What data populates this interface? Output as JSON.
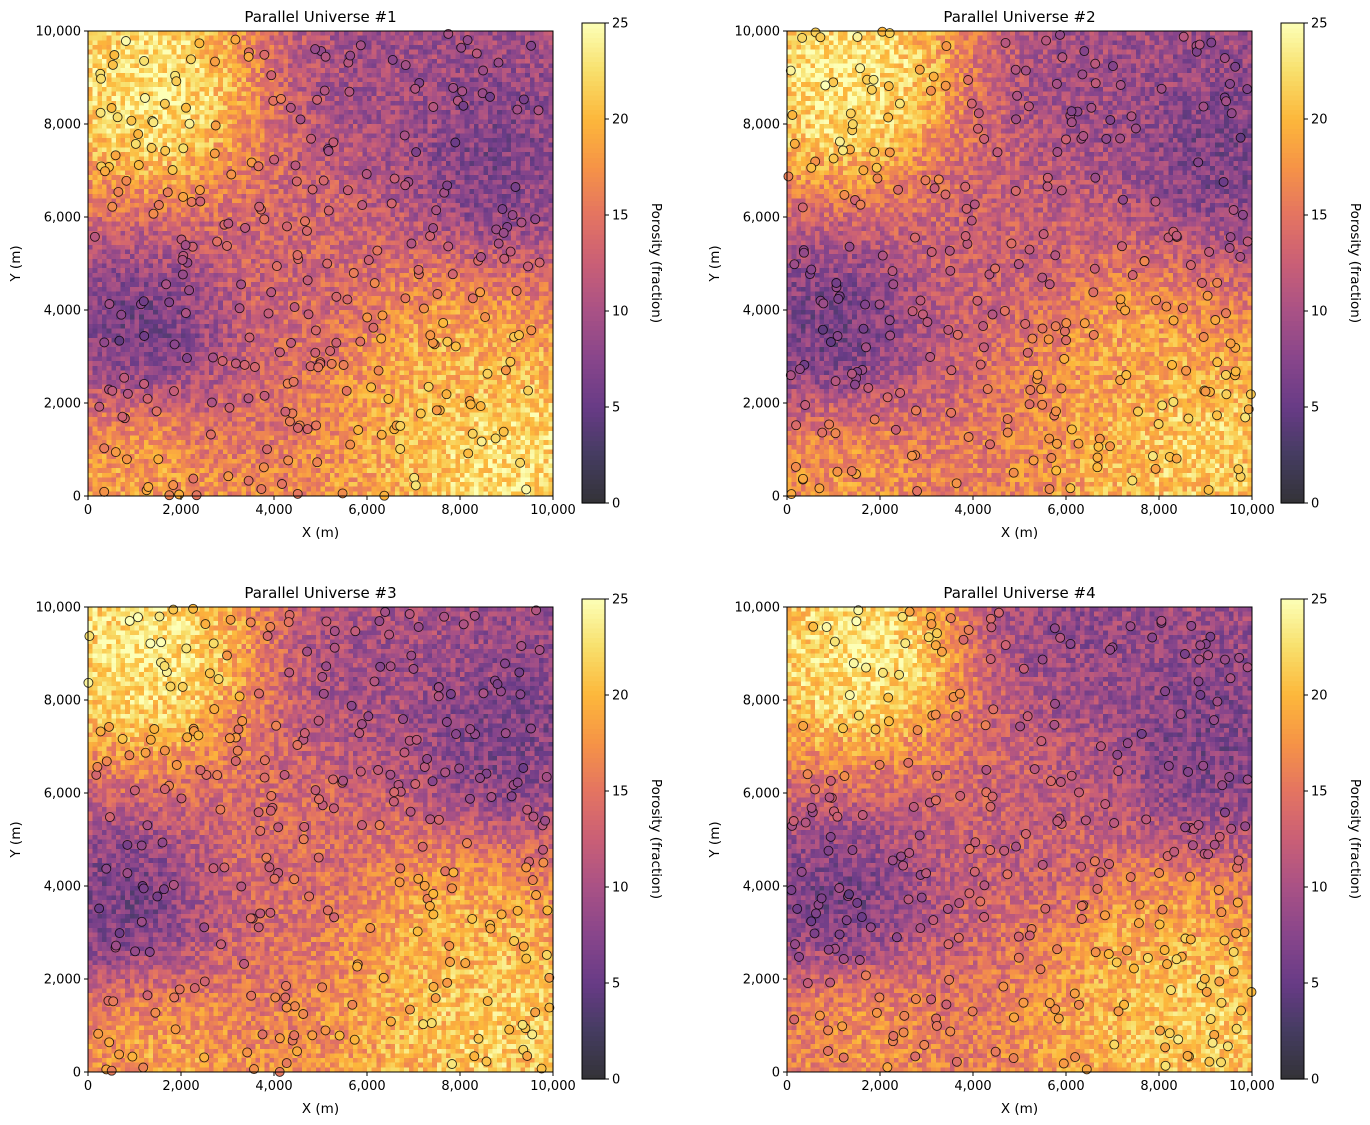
{
  "colors": {
    "colormap": "inferno",
    "colormap_alpha": 0.8,
    "sample_edgecolor": "#000000"
  },
  "chart_data": [
    {
      "type": "heatmap",
      "title": "Parallel Universe #1",
      "xlabel": "X (m)",
      "ylabel": "Y (m)",
      "xlim": [
        0,
        10000
      ],
      "ylim": [
        0,
        10000
      ],
      "xticks": [
        "0",
        "2,000",
        "4,000",
        "6,000",
        "8,000",
        "10,000"
      ],
      "yticks": [
        "0",
        "2,000",
        "4,000",
        "6,000",
        "8,000",
        "10,000"
      ],
      "colorbar": {
        "label": "Porosity (fraction)",
        "range": [
          0,
          25
        ],
        "ticks": [
          "0",
          "5",
          "10",
          "15",
          "20",
          "25"
        ]
      },
      "grid_cells": [
        100,
        100
      ],
      "seed": 11,
      "trend_centers": [
        {
          "x": 1600,
          "y": 8600,
          "value": 24
        },
        {
          "x": 8800,
          "y": 1000,
          "value": 23
        },
        {
          "x": 7500,
          "y": 3000,
          "value": 20
        },
        {
          "x": 1200,
          "y": 3500,
          "value": 5
        },
        {
          "x": 8500,
          "y": 7000,
          "value": 6
        },
        {
          "x": 6000,
          "y": 9000,
          "value": 9
        },
        {
          "x": 1000,
          "y": 600,
          "value": 19
        },
        {
          "x": 5000,
          "y": 5000,
          "value": 13
        }
      ],
      "sample_count": 300
    },
    {
      "type": "heatmap",
      "title": "Parallel Universe #2",
      "xlabel": "X (m)",
      "ylabel": "Y (m)",
      "xlim": [
        0,
        10000
      ],
      "ylim": [
        0,
        10000
      ],
      "xticks": [
        "0",
        "2,000",
        "4,000",
        "6,000",
        "8,000",
        "10,000"
      ],
      "yticks": [
        "0",
        "2,000",
        "4,000",
        "6,000",
        "8,000",
        "10,000"
      ],
      "colorbar": {
        "label": "Porosity (fraction)",
        "range": [
          0,
          25
        ],
        "ticks": [
          "0",
          "5",
          "10",
          "15",
          "20",
          "25"
        ]
      },
      "grid_cells": [
        100,
        100
      ],
      "seed": 23,
      "trend_centers": [
        {
          "x": 1500,
          "y": 8800,
          "value": 24
        },
        {
          "x": 8700,
          "y": 1200,
          "value": 22
        },
        {
          "x": 7300,
          "y": 3200,
          "value": 19
        },
        {
          "x": 1000,
          "y": 3500,
          "value": 5
        },
        {
          "x": 9000,
          "y": 7200,
          "value": 6
        },
        {
          "x": 6500,
          "y": 8800,
          "value": 9
        },
        {
          "x": 1200,
          "y": 500,
          "value": 18
        },
        {
          "x": 5000,
          "y": 5500,
          "value": 12
        }
      ],
      "sample_count": 300
    },
    {
      "type": "heatmap",
      "title": "Parallel Universe #3",
      "xlabel": "X (m)",
      "ylabel": "Y (m)",
      "xlim": [
        0,
        10000
      ],
      "ylim": [
        0,
        10000
      ],
      "xticks": [
        "0",
        "2,000",
        "4,000",
        "6,000",
        "8,000",
        "10,000"
      ],
      "yticks": [
        "0",
        "2,000",
        "4,000",
        "6,000",
        "8,000",
        "10,000"
      ],
      "colorbar": {
        "label": "Porosity (fraction)",
        "range": [
          0,
          25
        ],
        "ticks": [
          "0",
          "5",
          "10",
          "15",
          "20",
          "25"
        ]
      },
      "grid_cells": [
        100,
        100
      ],
      "seed": 37,
      "trend_centers": [
        {
          "x": 1500,
          "y": 8800,
          "value": 24
        },
        {
          "x": 8500,
          "y": 1200,
          "value": 22
        },
        {
          "x": 7800,
          "y": 3000,
          "value": 20
        },
        {
          "x": 900,
          "y": 3500,
          "value": 5
        },
        {
          "x": 8800,
          "y": 7000,
          "value": 6
        },
        {
          "x": 6000,
          "y": 8500,
          "value": 9
        },
        {
          "x": 1500,
          "y": 500,
          "value": 19
        },
        {
          "x": 4500,
          "y": 4800,
          "value": 14
        }
      ],
      "sample_count": 300
    },
    {
      "type": "heatmap",
      "title": "Parallel Universe #4",
      "xlabel": "X (m)",
      "ylabel": "Y (m)",
      "xlim": [
        0,
        10000
      ],
      "ylim": [
        0,
        10000
      ],
      "xticks": [
        "0",
        "2,000",
        "4,000",
        "6,000",
        "8,000",
        "10,000"
      ],
      "yticks": [
        "0",
        "2,000",
        "4,000",
        "6,000",
        "8,000",
        "10,000"
      ],
      "colorbar": {
        "label": "Porosity (fraction)",
        "range": [
          0,
          25
        ],
        "ticks": [
          "0",
          "5",
          "10",
          "15",
          "20",
          "25"
        ]
      },
      "grid_cells": [
        100,
        100
      ],
      "seed": 53,
      "trend_centers": [
        {
          "x": 1800,
          "y": 8800,
          "value": 24
        },
        {
          "x": 8700,
          "y": 1200,
          "value": 22
        },
        {
          "x": 7500,
          "y": 2500,
          "value": 20
        },
        {
          "x": 1200,
          "y": 3500,
          "value": 5
        },
        {
          "x": 8800,
          "y": 6800,
          "value": 6
        },
        {
          "x": 6000,
          "y": 9500,
          "value": 8
        },
        {
          "x": 1500,
          "y": 1000,
          "value": 18
        },
        {
          "x": 5500,
          "y": 5000,
          "value": 12
        }
      ],
      "sample_count": 300
    }
  ]
}
